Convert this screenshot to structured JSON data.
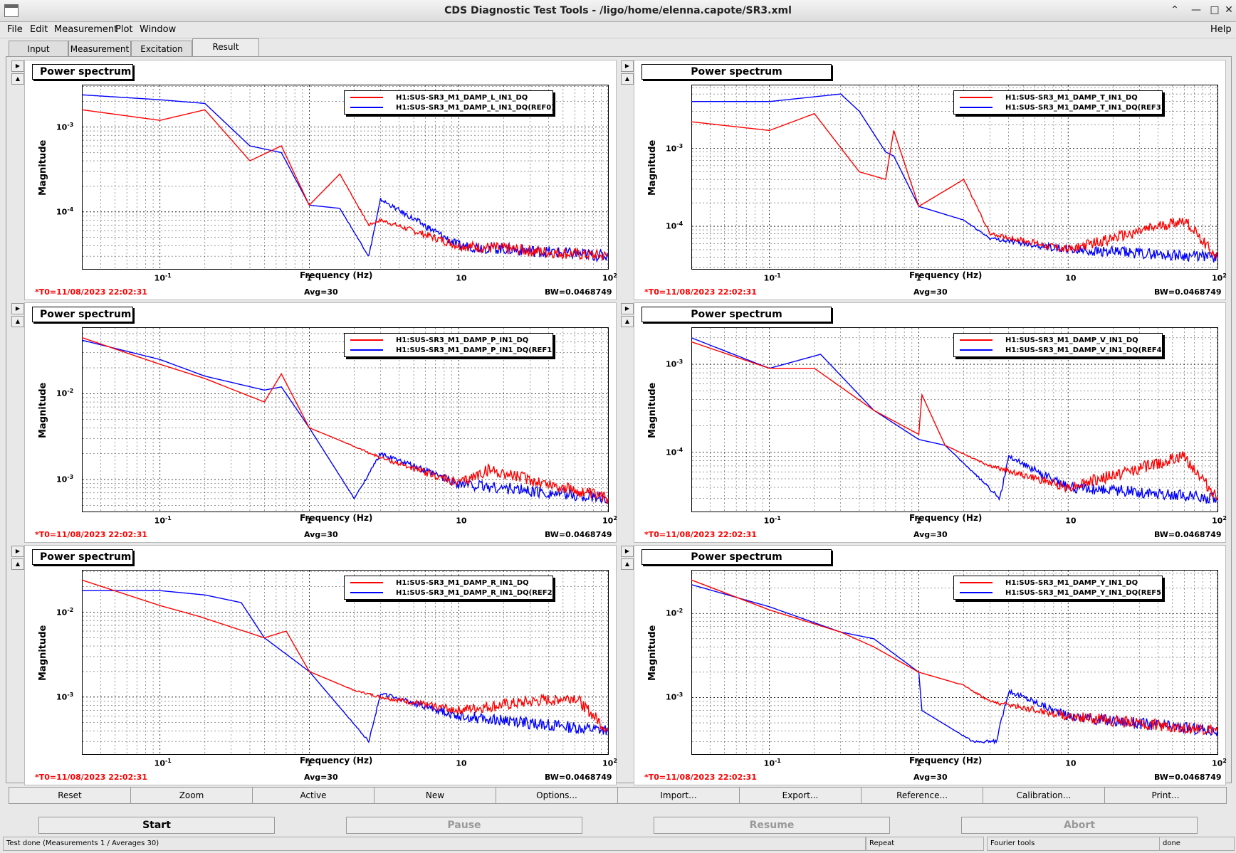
{
  "window": {
    "title": "CDS Diagnostic Test Tools - /ligo/home/elenna.capote/SR3.xml",
    "help": "Help"
  },
  "menu": [
    "File",
    "Edit",
    "Measurement",
    "Plot",
    "Window"
  ],
  "tabs": [
    "Input",
    "Measurement",
    "Excitation",
    "Result"
  ],
  "panels": [
    {
      "title": "Power spectrum",
      "legend": [
        "H1:SUS-SR3_M1_DAMP_L_IN1_DQ",
        "H1:SUS-SR3_M1_DAMP_L_IN1_DQ(REF0)"
      ],
      "yticks": [
        "10",
        "10"
      ],
      "yexp": [
        "-3",
        "-4"
      ],
      "t0": "*T0=11/08/2023 22:02:31",
      "avg": "Avg=30",
      "bw": "BW=0.0468749"
    },
    {
      "title": "Power spectrum",
      "legend": [
        "H1:SUS-SR3_M1_DAMP_T_IN1_DQ",
        "H1:SUS-SR3_M1_DAMP_T_IN1_DQ(REF3)"
      ],
      "yticks": [
        "10",
        "10"
      ],
      "yexp": [
        "-3",
        "-4"
      ],
      "t0": "*T0=11/08/2023 22:02:31",
      "avg": "Avg=30",
      "bw": "BW=0.0468749"
    },
    {
      "title": "Power spectrum",
      "legend": [
        "H1:SUS-SR3_M1_DAMP_P_IN1_DQ",
        "H1:SUS-SR3_M1_DAMP_P_IN1_DQ(REF1)"
      ],
      "yticks": [
        "10",
        "10"
      ],
      "yexp": [
        "-2",
        "-3"
      ],
      "t0": "*T0=11/08/2023 22:02:31",
      "avg": "Avg=30",
      "bw": "BW=0.0468749"
    },
    {
      "title": "Power spectrum",
      "legend": [
        "H1:SUS-SR3_M1_DAMP_V_IN1_DQ",
        "H1:SUS-SR3_M1_DAMP_V_IN1_DQ(REF4)"
      ],
      "yticks": [
        "10",
        "10"
      ],
      "yexp": [
        "-3",
        "-4"
      ],
      "t0": "*T0=11/08/2023 22:02:31",
      "avg": "Avg=30",
      "bw": "BW=0.0468749"
    },
    {
      "title": "Power spectrum",
      "legend": [
        "H1:SUS-SR3_M1_DAMP_R_IN1_DQ",
        "H1:SUS-SR3_M1_DAMP_R_IN1_DQ(REF2)"
      ],
      "yticks": [
        "10",
        "10"
      ],
      "yexp": [
        "-2",
        "-3"
      ],
      "t0": "*T0=11/08/2023 22:02:31",
      "avg": "Avg=30",
      "bw": "BW=0.0468749"
    },
    {
      "title": "Power spectrum",
      "legend": [
        "H1:SUS-SR3_M1_DAMP_Y_IN1_DQ",
        "H1:SUS-SR3_M1_DAMP_Y_IN1_DQ(REF5)"
      ],
      "yticks": [
        "10",
        "10"
      ],
      "yexp": [
        "-2",
        "-3"
      ],
      "t0": "*T0=11/08/2023 22:02:31",
      "avg": "Avg=30",
      "bw": "BW=0.0468749"
    }
  ],
  "axis": {
    "ylabel": "Magnitude",
    "xlabel": "Frequency (Hz)",
    "xticks": [
      "10",
      "1",
      "10",
      "10"
    ],
    "xexp": [
      "-1",
      "",
      "",
      "2"
    ]
  },
  "colors": {
    "current": "#ff0000",
    "reference": "#0000ff"
  },
  "buttons": [
    "Reset",
    "Zoom",
    "Active",
    "New",
    "Options...",
    "Import...",
    "Export...",
    "Reference...",
    "Calibration...",
    "Print..."
  ],
  "controls": {
    "start": "Start",
    "pause": "Pause",
    "resume": "Resume",
    "abort": "Abort"
  },
  "status": {
    "main": "Test done (Measurements 1 / Averages 30)",
    "repeat": "Repeat",
    "tools": "Fourier tools",
    "state": "done"
  },
  "chart_data": [
    {
      "type": "line",
      "x_scale": "log",
      "y_scale": "log",
      "xlim": [
        0.03,
        100
      ],
      "series": [
        {
          "name": "H1:SUS-SR3_M1_DAMP_L_IN1_DQ",
          "x": [
            0.03,
            0.1,
            0.2,
            0.4,
            0.65,
            1,
            1.6,
            2.5,
            3,
            10,
            100
          ],
          "y": [
            0.0016,
            0.0012,
            0.0016,
            0.0004,
            0.0006,
            0.00012,
            0.00028,
            7e-05,
            8e-05,
            4e-05,
            3e-05
          ]
        },
        {
          "name": "H1:SUS-SR3_M1_DAMP_L_IN1_DQ(REF0)",
          "x": [
            0.03,
            0.1,
            0.2,
            0.4,
            0.65,
            1,
            1.6,
            2.5,
            3,
            10,
            100
          ],
          "y": [
            0.0024,
            0.0021,
            0.0019,
            0.0006,
            0.0005,
            0.00012,
            0.00011,
            3e-05,
            0.00014,
            4e-05,
            3e-05
          ]
        }
      ]
    },
    {
      "type": "line",
      "x_scale": "log",
      "y_scale": "log",
      "xlim": [
        0.03,
        100
      ],
      "series": [
        {
          "name": "H1:SUS-SR3_M1_DAMP_T_IN1_DQ",
          "x": [
            0.03,
            0.1,
            0.2,
            0.4,
            0.6,
            0.68,
            1,
            2,
            3,
            10,
            60,
            100
          ],
          "y": [
            0.0022,
            0.0017,
            0.0028,
            0.0005,
            0.0004,
            0.0017,
            0.00018,
            0.0004,
            8e-05,
            5e-05,
            0.00012,
            4e-05
          ]
        },
        {
          "name": "H1:SUS-SR3_M1_DAMP_T_IN1_DQ(REF3)",
          "x": [
            0.03,
            0.1,
            0.3,
            0.4,
            0.6,
            0.68,
            1,
            2,
            3,
            10,
            100
          ],
          "y": [
            0.004,
            0.004,
            0.005,
            0.003,
            0.0009,
            0.0008,
            0.00018,
            0.00012,
            7e-05,
            5e-05,
            4e-05
          ]
        }
      ]
    },
    {
      "type": "line",
      "x_scale": "log",
      "y_scale": "log",
      "xlim": [
        0.03,
        100
      ],
      "series": [
        {
          "name": "H1:SUS-SR3_M1_DAMP_P_IN1_DQ",
          "x": [
            0.03,
            0.1,
            0.2,
            0.5,
            0.65,
            1,
            1.5,
            3,
            10,
            16,
            100
          ],
          "y": [
            0.045,
            0.022,
            0.015,
            0.008,
            0.017,
            0.004,
            0.003,
            0.0018,
            0.0009,
            0.0013,
            0.0006
          ]
        },
        {
          "name": "H1:SUS-SR3_M1_DAMP_P_IN1_DQ(REF1)",
          "x": [
            0.03,
            0.1,
            0.2,
            0.5,
            0.65,
            1,
            2,
            3,
            10,
            100
          ],
          "y": [
            0.042,
            0.025,
            0.016,
            0.011,
            0.012,
            0.004,
            0.0006,
            0.002,
            0.0009,
            0.0006
          ]
        }
      ]
    },
    {
      "type": "line",
      "x_scale": "log",
      "y_scale": "log",
      "xlim": [
        0.03,
        100
      ],
      "series": [
        {
          "name": "H1:SUS-SR3_M1_DAMP_V_IN1_DQ",
          "x": [
            0.03,
            0.1,
            0.2,
            0.5,
            1,
            1.05,
            1.5,
            3,
            10,
            60,
            100
          ],
          "y": [
            0.0018,
            0.0009,
            0.0009,
            0.0003,
            0.00016,
            0.00045,
            0.00012,
            7e-05,
            4e-05,
            9e-05,
            3e-05
          ]
        },
        {
          "name": "H1:SUS-SR3_M1_DAMP_V_IN1_DQ(REF4)",
          "x": [
            0.03,
            0.1,
            0.22,
            0.5,
            1,
            1.5,
            3.5,
            4,
            10,
            100
          ],
          "y": [
            0.002,
            0.0009,
            0.0013,
            0.0003,
            0.00014,
            0.00012,
            3e-05,
            9e-05,
            4e-05,
            3e-05
          ]
        }
      ]
    },
    {
      "type": "line",
      "x_scale": "log",
      "y_scale": "log",
      "xlim": [
        0.03,
        100
      ],
      "series": [
        {
          "name": "H1:SUS-SR3_M1_DAMP_R_IN1_DQ",
          "x": [
            0.03,
            0.1,
            0.18,
            0.5,
            0.7,
            1,
            2,
            3,
            10,
            60,
            100
          ],
          "y": [
            0.024,
            0.012,
            0.009,
            0.005,
            0.006,
            0.002,
            0.0012,
            0.001,
            0.0007,
            0.001,
            0.0004
          ]
        },
        {
          "name": "H1:SUS-SR3_M1_DAMP_R_IN1_DQ(REF2)",
          "x": [
            0.03,
            0.1,
            0.2,
            0.35,
            0.5,
            1,
            2.5,
            3,
            10,
            100
          ],
          "y": [
            0.018,
            0.018,
            0.016,
            0.013,
            0.005,
            0.002,
            0.0003,
            0.0011,
            0.0006,
            0.0004
          ]
        }
      ]
    },
    {
      "type": "line",
      "x_scale": "log",
      "y_scale": "log",
      "xlim": [
        0.03,
        100
      ],
      "series": [
        {
          "name": "H1:SUS-SR3_M1_DAMP_Y_IN1_DQ",
          "x": [
            0.03,
            0.1,
            0.3,
            0.5,
            1,
            2,
            3,
            10,
            100
          ],
          "y": [
            0.025,
            0.011,
            0.006,
            0.004,
            0.002,
            0.0014,
            0.0009,
            0.0006,
            0.0004
          ]
        },
        {
          "name": "H1:SUS-SR3_M1_DAMP_Y_IN1_DQ(REF5)",
          "x": [
            0.03,
            0.1,
            0.3,
            0.5,
            1,
            1.05,
            2.3,
            3.3,
            4,
            10,
            100
          ],
          "y": [
            0.022,
            0.012,
            0.006,
            0.005,
            0.002,
            0.0007,
            0.0003,
            0.0003,
            0.0012,
            0.0006,
            0.0004
          ]
        }
      ]
    }
  ]
}
